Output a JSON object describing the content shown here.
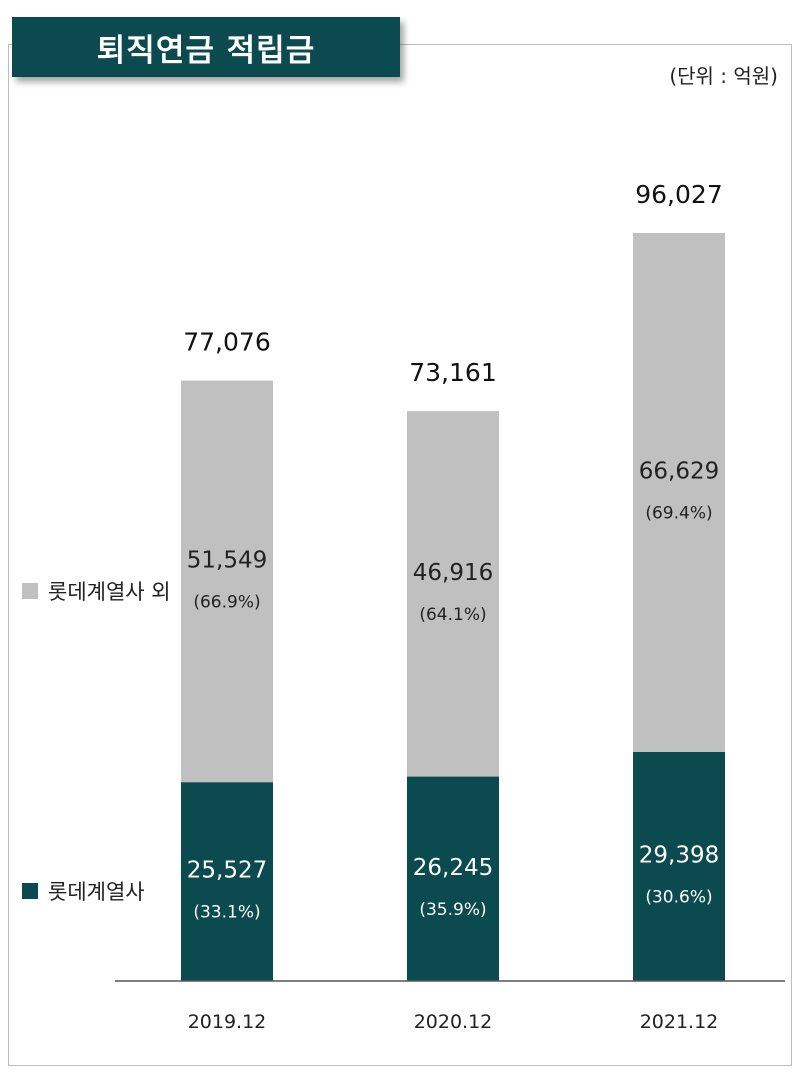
{
  "title": "퇴직연금 적립금",
  "unit_note": "(단위 : 억원)",
  "colors": {
    "brand": "#0b4a4f",
    "other": "#c0c0c0"
  },
  "legend": [
    {
      "label": "롯데계열사 외",
      "color": "#c0c0c0"
    },
    {
      "label": "롯데계열사",
      "color": "#0b4a4f"
    }
  ],
  "chart_data": {
    "type": "bar",
    "stacked": true,
    "title": "퇴직연금 적립금",
    "categories": [
      "2019.12",
      "2020.12",
      "2021.12"
    ],
    "ylim": [
      0,
      100000
    ],
    "series": [
      {
        "name": "롯데계열사",
        "color": "#0b4a4f",
        "values": [
          25527,
          26245,
          29398
        ],
        "value_labels": [
          "25,527",
          "26,245",
          "29,398"
        ],
        "pct_labels": [
          "(33.1%)",
          "(35.9%)",
          "(30.6%)"
        ]
      },
      {
        "name": "롯데계열사 외",
        "color": "#c0c0c0",
        "values": [
          51549,
          46916,
          66629
        ],
        "value_labels": [
          "51,549",
          "46,916",
          "66,629"
        ],
        "pct_labels": [
          "(66.9%)",
          "(64.1%)",
          "(69.4%)"
        ]
      }
    ],
    "totals": [
      77076,
      73161,
      96027
    ],
    "total_labels": [
      "77,076",
      "73,161",
      "96,027"
    ]
  }
}
